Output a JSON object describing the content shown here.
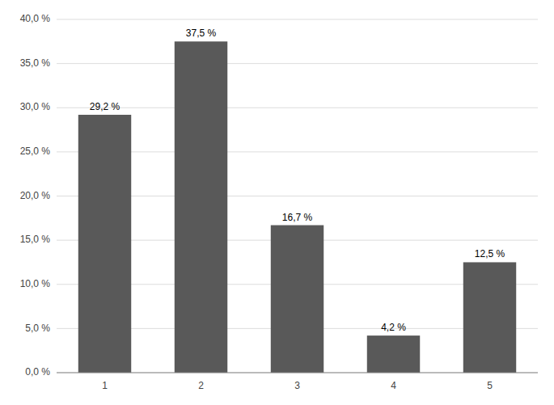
{
  "chart_data": {
    "type": "bar",
    "categories": [
      "1",
      "2",
      "3",
      "4",
      "5"
    ],
    "values": [
      29.2,
      37.5,
      16.7,
      4.2,
      12.5
    ],
    "value_labels": [
      "29,2 %",
      "37,5 %",
      "16,7 %",
      "4,2 %",
      "12,5 %"
    ],
    "color": "#595959",
    "ylim": [
      0,
      40
    ],
    "yticks": [
      {
        "value": 0,
        "label": "0,0 %"
      },
      {
        "value": 5,
        "label": "5,0 %"
      },
      {
        "value": 10,
        "label": "10,0 %"
      },
      {
        "value": 15,
        "label": "15,0 %"
      },
      {
        "value": 20,
        "label": "20,0 %"
      },
      {
        "value": 25,
        "label": "25,0 %"
      },
      {
        "value": 30,
        "label": "30,0 %"
      },
      {
        "value": 35,
        "label": "35,0 %"
      },
      {
        "value": 40,
        "label": "40,0 %"
      }
    ],
    "grid": true,
    "data_labels": true
  }
}
